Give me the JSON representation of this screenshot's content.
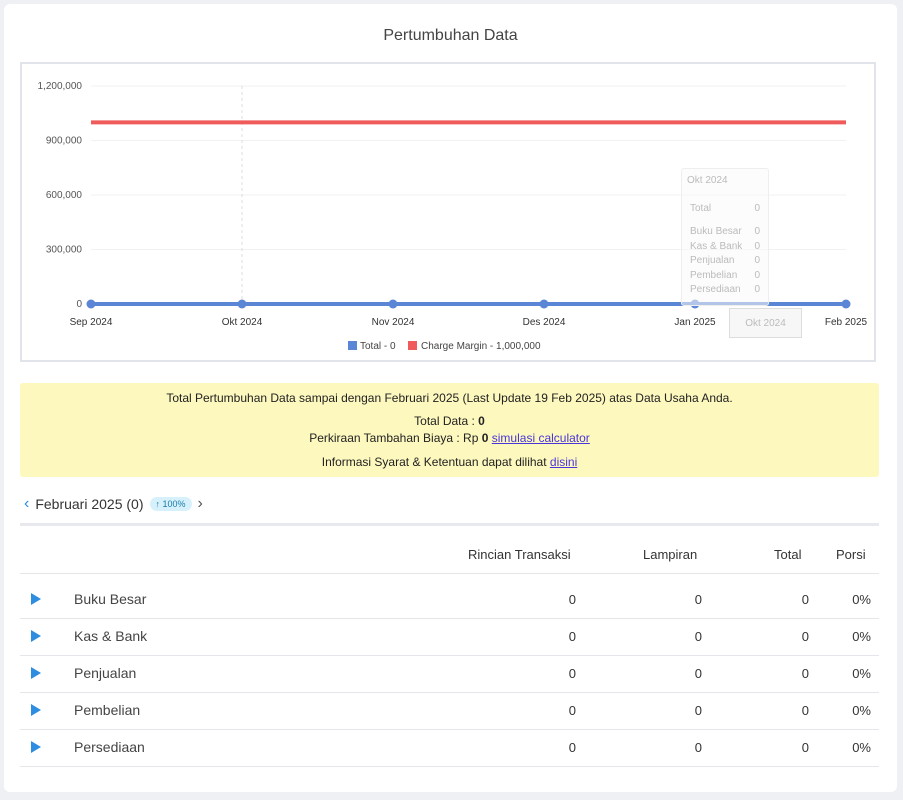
{
  "page_title": "Pertumbuhan Data",
  "chart_data": {
    "type": "line",
    "categories": [
      "Sep 2024",
      "Okt 2024",
      "Nov 2024",
      "Des 2024",
      "Jan 2025",
      "Feb 2025"
    ],
    "series": [
      {
        "name": "Total",
        "values": [
          0,
          0,
          0,
          0,
          0,
          0
        ],
        "color": "#5b86d6"
      },
      {
        "name": "Charge Margin",
        "values": [
          1000000,
          1000000,
          1000000,
          1000000,
          1000000,
          1000000
        ],
        "color": "#ef5a5a"
      }
    ],
    "yticks": [
      "1,200,000",
      "900,000",
      "600,000",
      "300,000",
      "0"
    ],
    "ylim": [
      0,
      1200000
    ],
    "legend": [
      "Total - 0",
      "Charge Margin - 1,000,000"
    ],
    "legend_position": "bottom"
  },
  "tooltip": {
    "title": "Okt 2024",
    "rows": [
      {
        "label": "Total",
        "value": "0"
      },
      {
        "label": "Buku Besar",
        "value": "0"
      },
      {
        "label": "Kas & Bank",
        "value": "0"
      },
      {
        "label": "Penjualan",
        "value": "0"
      },
      {
        "label": "Pembelian",
        "value": "0"
      },
      {
        "label": "Persediaan",
        "value": "0"
      }
    ],
    "x_label": "Okt 2024"
  },
  "info": {
    "line1": "Total Pertumbuhan Data sampai dengan Februari 2025 (Last Update 19 Feb 2025) atas Data Usaha Anda.",
    "total_label": "Total Data : ",
    "total_value": "0",
    "cost_label": "Perkiraan Tambahan Biaya : Rp ",
    "cost_value": "0",
    "calc_link": "simulasi calculator",
    "terms_text": "Informasi Syarat & Ketentuan dapat dilihat ",
    "terms_link": "disini"
  },
  "month_nav": {
    "label": "Februari 2025 (0)",
    "badge": "↑ 100%"
  },
  "table": {
    "headers": [
      "Rincian Transaksi",
      "Lampiran",
      "Total",
      "Porsi"
    ],
    "rows": [
      {
        "name": "Buku Besar",
        "rincian": "0",
        "lampiran": "0",
        "total": "0",
        "porsi": "0%"
      },
      {
        "name": "Kas & Bank",
        "rincian": "0",
        "lampiran": "0",
        "total": "0",
        "porsi": "0%"
      },
      {
        "name": "Penjualan",
        "rincian": "0",
        "lampiran": "0",
        "total": "0",
        "porsi": "0%"
      },
      {
        "name": "Pembelian",
        "rincian": "0",
        "lampiran": "0",
        "total": "0",
        "porsi": "0%"
      },
      {
        "name": "Persediaan",
        "rincian": "0",
        "lampiran": "0",
        "total": "0",
        "porsi": "0%"
      }
    ]
  }
}
